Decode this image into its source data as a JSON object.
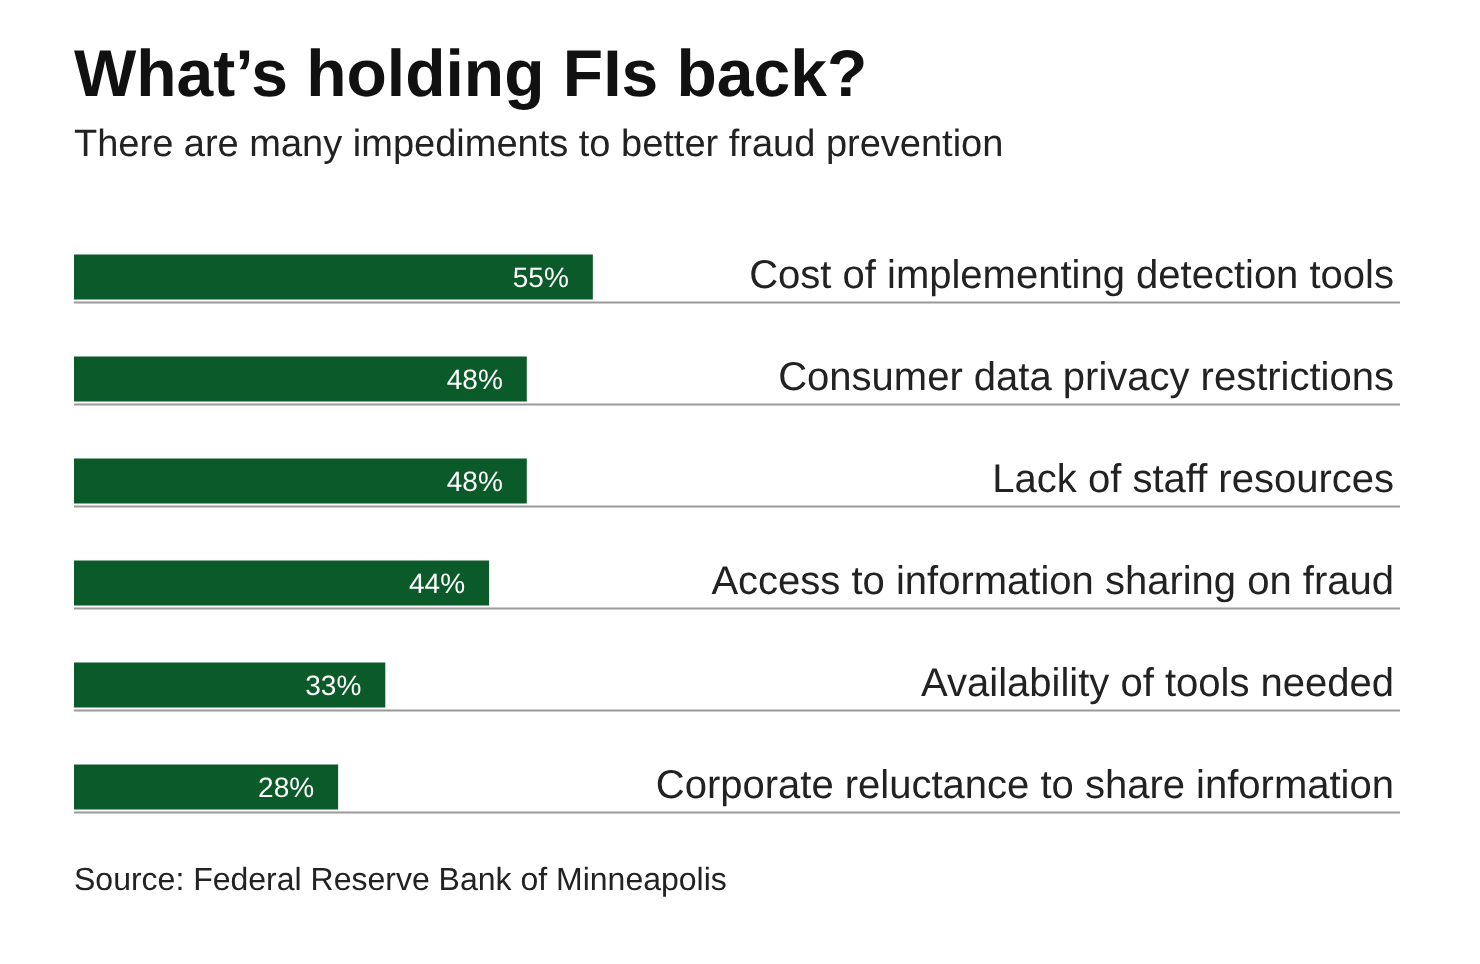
{
  "chart_data": {
    "type": "bar",
    "orientation": "horizontal",
    "title": "What’s holding FIs back?",
    "subtitle": "There are many impediments to better fraud prevention",
    "categories": [
      "Cost of implementing detection tools",
      "Consumer data privacy restrictions",
      "Lack of staff resources",
      "Access to information sharing on fraud",
      "Availability of tools needed",
      "Corporate reluctance to share information"
    ],
    "values": [
      55,
      48,
      48,
      44,
      33,
      28
    ],
    "value_labels": [
      "55%",
      "48%",
      "48%",
      "44%",
      "33%",
      "28%"
    ],
    "color": "#0b5a2a",
    "legend": false,
    "annotations": [
      "Source: Federal Reserve Bank of Minneapolis"
    ]
  }
}
